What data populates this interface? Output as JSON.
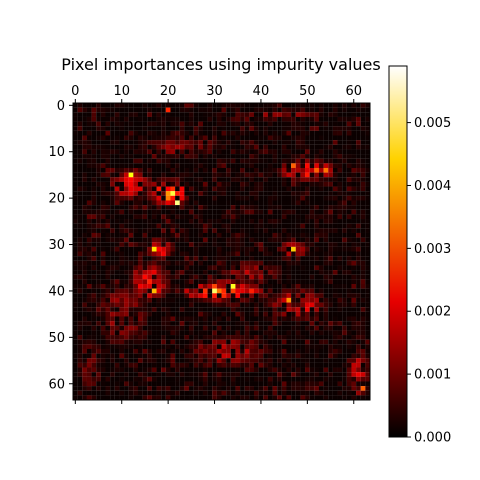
{
  "chart_data": {
    "type": "heatmap",
    "title": "Pixel importances using impurity values",
    "xlabel": "",
    "ylabel": "",
    "grid_size": [
      64,
      64
    ],
    "xlim": [
      -0.5,
      63.5
    ],
    "ylim": [
      63.5,
      -0.5
    ],
    "x_ticks": [
      0,
      10,
      20,
      30,
      40,
      50,
      60
    ],
    "y_ticks": [
      0,
      10,
      20,
      30,
      40,
      50,
      60
    ],
    "x_tick_position": "top",
    "grid": false,
    "colormap": "hot",
    "colormap_colors": [
      "#000000",
      "#e60000",
      "#ffd200",
      "#ffffff"
    ],
    "colorbar": {
      "range": [
        0,
        0.0059
      ],
      "ticks": [
        0.0,
        0.001,
        0.002,
        0.003,
        0.004,
        0.005
      ],
      "tick_labels": [
        "0.000",
        "0.001",
        "0.002",
        "0.003",
        "0.004",
        "0.005"
      ],
      "placement": "right"
    },
    "hotspots": [
      {
        "x": 21,
        "y": 19,
        "value": 0.0048
      },
      {
        "x": 22,
        "y": 21,
        "value": 0.0052
      },
      {
        "x": 12,
        "y": 15,
        "value": 0.0045
      },
      {
        "x": 17,
        "y": 31,
        "value": 0.0042
      },
      {
        "x": 30,
        "y": 40,
        "value": 0.005
      },
      {
        "x": 34,
        "y": 39,
        "value": 0.0046
      },
      {
        "x": 47,
        "y": 31,
        "value": 0.004
      },
      {
        "x": 17,
        "y": 40,
        "value": 0.0038
      },
      {
        "x": 46,
        "y": 42,
        "value": 0.0035
      },
      {
        "x": 52,
        "y": 14,
        "value": 0.003
      },
      {
        "x": 54,
        "y": 14,
        "value": 0.0032
      },
      {
        "x": 47,
        "y": 13,
        "value": 0.003
      },
      {
        "x": 62,
        "y": 61,
        "value": 0.003
      },
      {
        "x": 20,
        "y": 1,
        "value": 0.0025
      }
    ],
    "high_importance_regions": [
      {
        "cx": 20,
        "cy": 19,
        "rx": 4,
        "ry": 3,
        "value": 0.003
      },
      {
        "cx": 12,
        "cy": 17,
        "rx": 4,
        "ry": 3,
        "value": 0.0022
      },
      {
        "cx": 50,
        "cy": 14,
        "rx": 6,
        "ry": 2,
        "value": 0.0024
      },
      {
        "cx": 32,
        "cy": 40,
        "rx": 9,
        "ry": 2,
        "value": 0.0028
      },
      {
        "cx": 18,
        "cy": 31,
        "rx": 3,
        "ry": 2,
        "value": 0.0022
      },
      {
        "cx": 16,
        "cy": 38,
        "rx": 4,
        "ry": 4,
        "value": 0.0022
      },
      {
        "cx": 48,
        "cy": 43,
        "rx": 6,
        "ry": 3,
        "value": 0.002
      },
      {
        "cx": 33,
        "cy": 53,
        "rx": 8,
        "ry": 3,
        "value": 0.0016
      },
      {
        "cx": 10,
        "cy": 45,
        "rx": 5,
        "ry": 6,
        "value": 0.0013
      },
      {
        "cx": 44,
        "cy": 2,
        "rx": 8,
        "ry": 1,
        "value": 0.0012
      },
      {
        "cx": 23,
        "cy": 9,
        "rx": 8,
        "ry": 2,
        "value": 0.0013
      },
      {
        "cx": 61,
        "cy": 58,
        "rx": 2,
        "ry": 5,
        "value": 0.0018
      },
      {
        "cx": 47,
        "cy": 31,
        "rx": 3,
        "ry": 2,
        "value": 0.0016
      },
      {
        "cx": 38,
        "cy": 36,
        "rx": 6,
        "ry": 2,
        "value": 0.0014
      },
      {
        "cx": 3,
        "cy": 56,
        "rx": 2,
        "ry": 5,
        "value": 0.001
      }
    ]
  }
}
